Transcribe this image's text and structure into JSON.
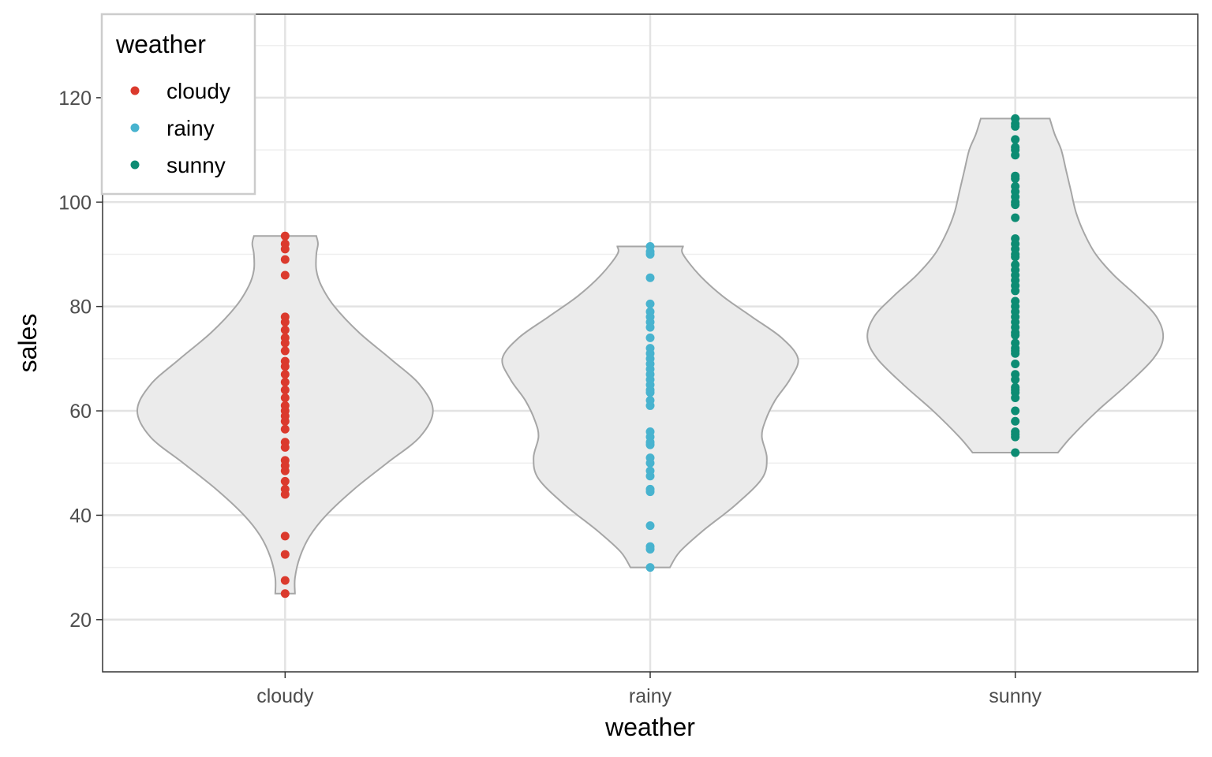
{
  "chart_data": {
    "type": "violin+jitter",
    "title": "",
    "xlabel": "weather",
    "ylabel": "sales",
    "ylim": [
      10,
      136
    ],
    "yticks": [
      20,
      40,
      60,
      80,
      100,
      120
    ],
    "categories": [
      "cloudy",
      "rainy",
      "sunny"
    ],
    "grid": true,
    "legend": {
      "title": "weather",
      "placement": "top-left",
      "items": [
        {
          "label": "cloudy",
          "color": "#db3a2d"
        },
        {
          "label": "rainy",
          "color": "#48b3cf"
        },
        {
          "label": "sunny",
          "color": "#0d8c73"
        }
      ]
    },
    "colors": {
      "violin_fill": "#ebebeb",
      "violin_stroke": "#a6a6a6",
      "grid_major": "#e3e3e3",
      "grid_minor": "#efefef",
      "panel_border": "#333333"
    },
    "series": [
      {
        "name": "cloudy",
        "color": "#db3a2d",
        "values": [
          93.5,
          92,
          91,
          89,
          86,
          78,
          77,
          75.5,
          74,
          73,
          71.5,
          69.5,
          68.5,
          67,
          65.5,
          64,
          62.5,
          61,
          60,
          59,
          58,
          56.5,
          54,
          53,
          50.5,
          49.5,
          48.5,
          46.5,
          45,
          44,
          36,
          32.5,
          27.5,
          25
        ],
        "violin": [
          [
            25,
            0.06
          ],
          [
            28,
            0.06
          ],
          [
            32,
            0.09
          ],
          [
            36,
            0.15
          ],
          [
            40,
            0.25
          ],
          [
            45,
            0.42
          ],
          [
            50,
            0.62
          ],
          [
            55,
            0.82
          ],
          [
            60,
            0.9
          ],
          [
            65,
            0.82
          ],
          [
            70,
            0.64
          ],
          [
            75,
            0.45
          ],
          [
            80,
            0.3
          ],
          [
            84,
            0.22
          ],
          [
            87,
            0.19
          ],
          [
            90,
            0.19
          ],
          [
            92,
            0.2
          ],
          [
            93.5,
            0.19
          ]
        ]
      },
      {
        "name": "rainy",
        "color": "#48b3cf",
        "values": [
          91.5,
          90.5,
          90,
          85.5,
          80.5,
          79,
          78,
          77,
          76,
          74,
          72,
          71,
          70,
          69,
          68,
          67,
          66,
          65,
          64,
          63.5,
          62,
          61,
          56,
          55,
          54,
          53.5,
          51,
          50,
          48.5,
          47.5,
          45,
          44.5,
          38,
          34,
          33.5,
          30
        ],
        "violin": [
          [
            30,
            0.12
          ],
          [
            33,
            0.18
          ],
          [
            37,
            0.32
          ],
          [
            42,
            0.52
          ],
          [
            47,
            0.68
          ],
          [
            51,
            0.71
          ],
          [
            55,
            0.68
          ],
          [
            58,
            0.7
          ],
          [
            62,
            0.76
          ],
          [
            66,
            0.85
          ],
          [
            70,
            0.9
          ],
          [
            74,
            0.8
          ],
          [
            78,
            0.62
          ],
          [
            82,
            0.44
          ],
          [
            86,
            0.3
          ],
          [
            90,
            0.2
          ],
          [
            91.5,
            0.2
          ]
        ]
      },
      {
        "name": "sunny",
        "color": "#0d8c73",
        "values": [
          116,
          115,
          114.5,
          112,
          110.5,
          110,
          109,
          105,
          104.5,
          103,
          102,
          101,
          100,
          99.5,
          97,
          93,
          92,
          91,
          90,
          89.5,
          88,
          87,
          86,
          85,
          84,
          83,
          81,
          80,
          79,
          78,
          77,
          76,
          75,
          74.5,
          73,
          72,
          71.5,
          71,
          69,
          67,
          66,
          64.5,
          64,
          63.5,
          62.5,
          60,
          58,
          56,
          55.5,
          55,
          52
        ],
        "violin": [
          [
            52,
            0.26
          ],
          [
            55,
            0.34
          ],
          [
            60,
            0.5
          ],
          [
            65,
            0.68
          ],
          [
            70,
            0.84
          ],
          [
            74,
            0.9
          ],
          [
            78,
            0.86
          ],
          [
            82,
            0.74
          ],
          [
            86,
            0.6
          ],
          [
            90,
            0.49
          ],
          [
            94,
            0.42
          ],
          [
            98,
            0.37
          ],
          [
            102,
            0.34
          ],
          [
            106,
            0.31
          ],
          [
            110,
            0.28
          ],
          [
            113,
            0.24
          ],
          [
            116,
            0.21
          ]
        ]
      }
    ]
  }
}
